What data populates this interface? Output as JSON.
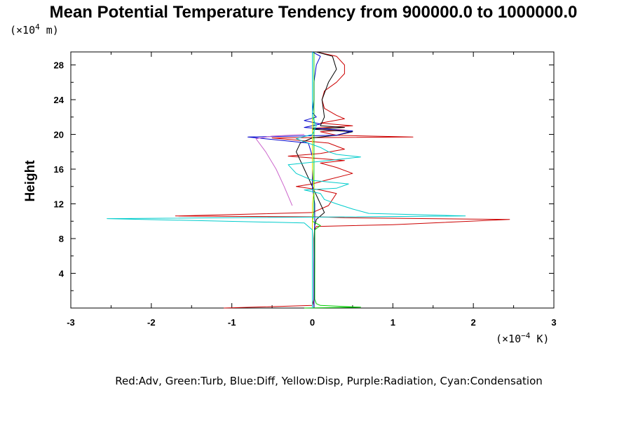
{
  "chart_data": {
    "type": "line",
    "title": "Mean Potential Temperature Tendency from 900000.0 to 1000000.0",
    "ylabel": "Height",
    "y_unit_prefix": "(×10",
    "y_unit_exp": "4",
    "y_unit_suffix": " m)",
    "x_unit_prefix": "(×10",
    "x_unit_exp": "−4",
    "x_unit_suffix": " K)",
    "xlim": [
      -3,
      3
    ],
    "ylim": [
      0,
      29.5
    ],
    "x_ticks": [
      -3,
      -2,
      -1,
      0,
      1,
      2,
      3
    ],
    "x_tick_labels": [
      "-3",
      "-2",
      "-1",
      "0",
      "1",
      "2",
      "3"
    ],
    "y_ticks": [
      4,
      8,
      12,
      16,
      20,
      24,
      28
    ],
    "y_tick_labels": [
      "4",
      "8",
      "12",
      "16",
      "20",
      "24",
      "28"
    ],
    "legend_text": "Red:Adv, Green:Turb, Blue:Diff, Yellow:Disp, Purple:Radiation, Cyan:Condensation",
    "series": [
      {
        "key": "adv",
        "color": "#cc0000",
        "points": [
          [
            -1.1,
            0.0
          ],
          [
            0.0,
            0.3
          ],
          [
            0.02,
            1.0
          ],
          [
            0.03,
            5.0
          ],
          [
            0.03,
            9.0
          ],
          [
            0.05,
            9.4
          ],
          [
            1.0,
            9.6
          ],
          [
            2.45,
            10.2
          ],
          [
            0.4,
            10.4
          ],
          [
            0.1,
            10.5
          ],
          [
            -1.7,
            10.6
          ],
          [
            0.0,
            11.0
          ],
          [
            0.2,
            11.8
          ],
          [
            0.3,
            13.2
          ],
          [
            0.1,
            13.6
          ],
          [
            -0.2,
            14.0
          ],
          [
            0.0,
            14.3
          ],
          [
            0.2,
            14.8
          ],
          [
            0.5,
            15.5
          ],
          [
            0.3,
            16.2
          ],
          [
            0.1,
            16.7
          ],
          [
            0.4,
            17.0
          ],
          [
            -0.3,
            17.5
          ],
          [
            0.1,
            17.8
          ],
          [
            0.4,
            18.3
          ],
          [
            0.2,
            19.0
          ],
          [
            -0.5,
            19.6
          ],
          [
            1.25,
            19.7
          ],
          [
            0.3,
            19.9
          ],
          [
            0.1,
            20.3
          ],
          [
            0.4,
            20.5
          ],
          [
            0.0,
            20.7
          ],
          [
            0.5,
            21.0
          ],
          [
            0.1,
            21.3
          ],
          [
            0.4,
            21.8
          ],
          [
            0.3,
            22.2
          ],
          [
            0.15,
            23.0
          ],
          [
            0.12,
            24.0
          ],
          [
            0.15,
            25.0
          ],
          [
            0.3,
            26.0
          ],
          [
            0.4,
            27.0
          ],
          [
            0.4,
            28.0
          ],
          [
            0.3,
            29.0
          ],
          [
            0.05,
            29.5
          ]
        ]
      },
      {
        "key": "black",
        "color": "#000000",
        "points": [
          [
            0.02,
            0.0
          ],
          [
            0.02,
            1.0
          ],
          [
            0.02,
            8.0
          ],
          [
            0.03,
            9.5
          ],
          [
            0.05,
            10.2
          ],
          [
            0.1,
            10.6
          ],
          [
            0.15,
            11.0
          ],
          [
            0.1,
            12.0
          ],
          [
            0.05,
            13.0
          ],
          [
            0.0,
            14.0
          ],
          [
            -0.05,
            15.0
          ],
          [
            -0.1,
            16.0
          ],
          [
            -0.15,
            17.0
          ],
          [
            -0.2,
            18.0
          ],
          [
            -0.15,
            19.0
          ],
          [
            0.0,
            19.6
          ],
          [
            0.3,
            19.9
          ],
          [
            0.5,
            20.3
          ],
          [
            0.0,
            20.6
          ],
          [
            0.4,
            20.8
          ],
          [
            0.1,
            21.0
          ],
          [
            0.15,
            22.0
          ],
          [
            0.12,
            24.0
          ],
          [
            0.2,
            26.0
          ],
          [
            0.3,
            27.5
          ],
          [
            0.25,
            29.0
          ],
          [
            0.05,
            29.5
          ]
        ]
      },
      {
        "key": "diff",
        "color": "#0000cc",
        "points": [
          [
            0.02,
            0.0
          ],
          [
            0.02,
            5.0
          ],
          [
            0.03,
            10.0
          ],
          [
            0.03,
            12.0
          ],
          [
            0.0,
            14.0
          ],
          [
            0.0,
            16.0
          ],
          [
            0.0,
            17.5
          ],
          [
            -0.05,
            19.0
          ],
          [
            -0.8,
            19.7
          ],
          [
            0.3,
            19.9
          ],
          [
            0.5,
            20.4
          ],
          [
            -0.1,
            20.8
          ],
          [
            0.1,
            21.2
          ],
          [
            -0.1,
            21.6
          ],
          [
            0.05,
            22.0
          ],
          [
            0.0,
            22.5
          ],
          [
            0.02,
            24.0
          ],
          [
            0.02,
            26.0
          ],
          [
            0.05,
            28.0
          ],
          [
            0.1,
            29.0
          ],
          [
            0.0,
            29.5
          ]
        ]
      },
      {
        "key": "turb",
        "color": "#00cc00",
        "points": [
          [
            -0.1,
            0.0
          ],
          [
            0.6,
            0.1
          ],
          [
            0.1,
            0.3
          ],
          [
            0.05,
            0.5
          ],
          [
            0.03,
            1.0
          ],
          [
            0.03,
            9.0
          ],
          [
            0.1,
            9.5
          ],
          [
            0.0,
            10.0
          ],
          [
            0.02,
            11.0
          ],
          [
            0.02,
            29.5
          ]
        ]
      },
      {
        "key": "disp",
        "color": "#dddd00",
        "points": [
          [
            0.0,
            0.0
          ],
          [
            0.0,
            9.0
          ],
          [
            0.0,
            12.0
          ],
          [
            0.02,
            13.5
          ],
          [
            0.0,
            16.0
          ],
          [
            0.0,
            20.0
          ],
          [
            0.0,
            29.5
          ]
        ]
      },
      {
        "key": "radiation",
        "color": "#cc66cc",
        "points": [
          [
            -0.25,
            11.8
          ],
          [
            -0.35,
            14.0
          ],
          [
            -0.45,
            16.0
          ],
          [
            -0.58,
            18.0
          ],
          [
            -0.7,
            19.5
          ],
          [
            -0.5,
            19.8
          ],
          [
            -0.1,
            20.0
          ]
        ]
      },
      {
        "key": "condensation",
        "color": "#00cccc",
        "points": [
          [
            0.0,
            0.0
          ],
          [
            0.0,
            9.0
          ],
          [
            -0.1,
            9.8
          ],
          [
            -2.55,
            10.3
          ],
          [
            1.9,
            10.6
          ],
          [
            0.7,
            10.9
          ],
          [
            0.5,
            11.4
          ],
          [
            0.3,
            12.0
          ],
          [
            0.15,
            12.5
          ],
          [
            0.1,
            13.2
          ],
          [
            -0.1,
            13.6
          ],
          [
            0.3,
            13.8
          ],
          [
            0.45,
            14.3
          ],
          [
            0.0,
            14.7
          ],
          [
            -0.2,
            15.5
          ],
          [
            -0.3,
            16.5
          ],
          [
            0.2,
            17.0
          ],
          [
            0.6,
            17.4
          ],
          [
            0.3,
            17.7
          ],
          [
            0.2,
            18.0
          ],
          [
            0.1,
            18.5
          ],
          [
            -0.2,
            19.5
          ],
          [
            0.0,
            20.0
          ],
          [
            0.05,
            21.0
          ],
          [
            0.0,
            22.0
          ],
          [
            0.0,
            24.0
          ],
          [
            0.0,
            26.0
          ],
          [
            0.0,
            29.5
          ]
        ]
      }
    ]
  }
}
